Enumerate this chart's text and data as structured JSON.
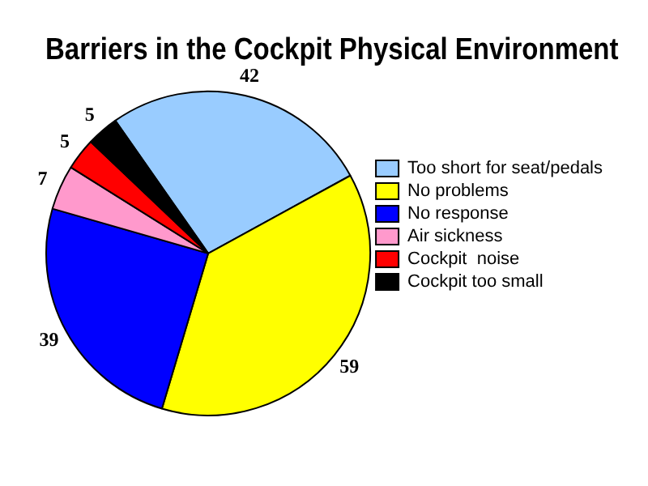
{
  "chart_data": {
    "type": "pie",
    "title": "Barriers in the Cockpit Physical Environment",
    "categories": [
      "Too short for seat/pedals",
      "No problems",
      "No response",
      "Air sickness",
      "Cockpit  noise",
      "Cockpit too small"
    ],
    "values": [
      42,
      59,
      39,
      7,
      5,
      5
    ],
    "colors": [
      "#99ccff",
      "#ffff00",
      "#0000ff",
      "#ff99cc",
      "#ff0000",
      "#000000"
    ],
    "data_labels": true,
    "legend": "right"
  }
}
